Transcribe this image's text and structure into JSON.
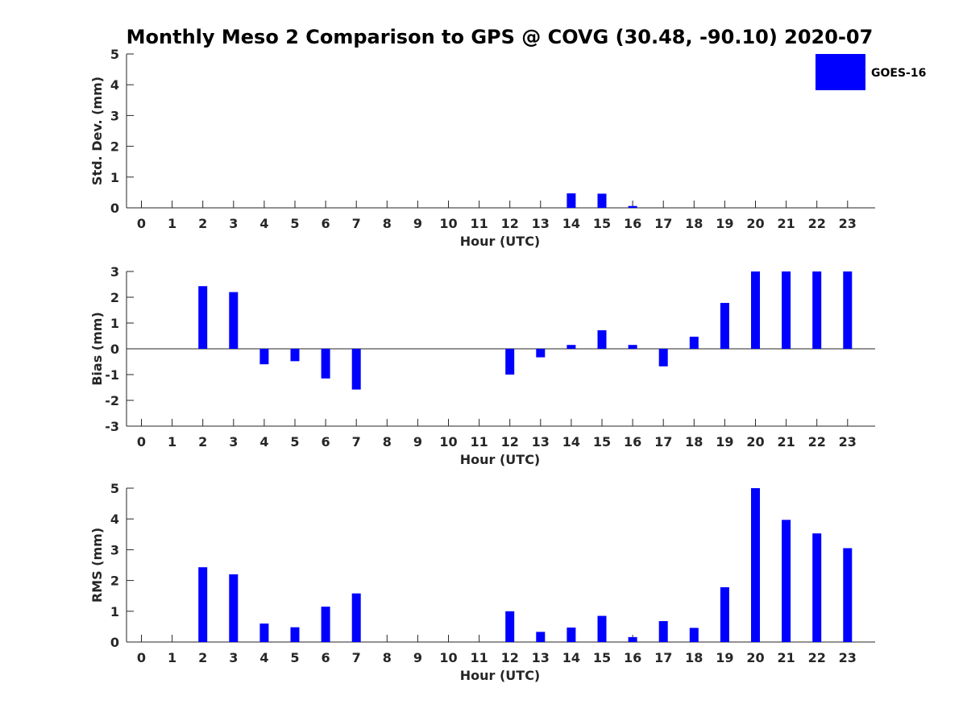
{
  "title": "Monthly Meso 2 Comparison to GPS @ COVG (30.48, -90.10) 2020-07",
  "legend": {
    "label": "GOES-16",
    "color": "#0000ff",
    "placement": "top-right"
  },
  "chart_data": [
    {
      "type": "bar",
      "panel": "std-dev",
      "xlabel": "Hour (UTC)",
      "ylabel": "Std. Dev. (mm)",
      "ylim": [
        0,
        5
      ],
      "yticks": [
        "0",
        "1",
        "2",
        "3",
        "4",
        "5"
      ],
      "categories": [
        "0",
        "1",
        "2",
        "3",
        "4",
        "5",
        "6",
        "7",
        "8",
        "9",
        "10",
        "11",
        "12",
        "13",
        "14",
        "15",
        "16",
        "17",
        "18",
        "19",
        "20",
        "21",
        "22",
        "23"
      ],
      "series": [
        {
          "name": "GOES-16",
          "color": "#0000ff",
          "values": [
            null,
            null,
            0,
            0,
            0,
            0,
            0,
            0,
            null,
            null,
            null,
            null,
            0,
            0,
            0.47,
            0.46,
            0.06,
            0,
            0,
            0,
            0,
            0,
            0,
            0
          ]
        }
      ]
    },
    {
      "type": "bar",
      "panel": "bias",
      "xlabel": "Hour (UTC)",
      "ylabel": "Bias (mm)",
      "ylim": [
        -3,
        3
      ],
      "yticks": [
        "-3",
        "-2",
        "-1",
        "0",
        "1",
        "2",
        "3"
      ],
      "categories": [
        "0",
        "1",
        "2",
        "3",
        "4",
        "5",
        "6",
        "7",
        "8",
        "9",
        "10",
        "11",
        "12",
        "13",
        "14",
        "15",
        "16",
        "17",
        "18",
        "19",
        "20",
        "21",
        "22",
        "23"
      ],
      "series": [
        {
          "name": "GOES-16",
          "color": "#0000ff",
          "values": [
            null,
            null,
            2.43,
            2.2,
            -0.6,
            -0.48,
            -1.15,
            -1.58,
            null,
            null,
            null,
            null,
            -1.0,
            -0.33,
            0.15,
            0.72,
            0.15,
            -0.68,
            0.47,
            1.78,
            3.0,
            3.0,
            3.0,
            3.0
          ]
        }
      ]
    },
    {
      "type": "bar",
      "panel": "rms",
      "xlabel": "Hour (UTC)",
      "ylabel": "RMS (mm)",
      "ylim": [
        0,
        5
      ],
      "yticks": [
        "0",
        "1",
        "2",
        "3",
        "4",
        "5"
      ],
      "categories": [
        "0",
        "1",
        "2",
        "3",
        "4",
        "5",
        "6",
        "7",
        "8",
        "9",
        "10",
        "11",
        "12",
        "13",
        "14",
        "15",
        "16",
        "17",
        "18",
        "19",
        "20",
        "21",
        "22",
        "23"
      ],
      "series": [
        {
          "name": "GOES-16",
          "color": "#0000ff",
          "values": [
            null,
            null,
            2.43,
            2.2,
            0.6,
            0.48,
            1.15,
            1.58,
            null,
            null,
            null,
            null,
            1.0,
            0.33,
            0.47,
            0.85,
            0.16,
            0.68,
            0.46,
            1.78,
            5.0,
            3.97,
            3.53,
            3.05
          ]
        }
      ]
    }
  ]
}
